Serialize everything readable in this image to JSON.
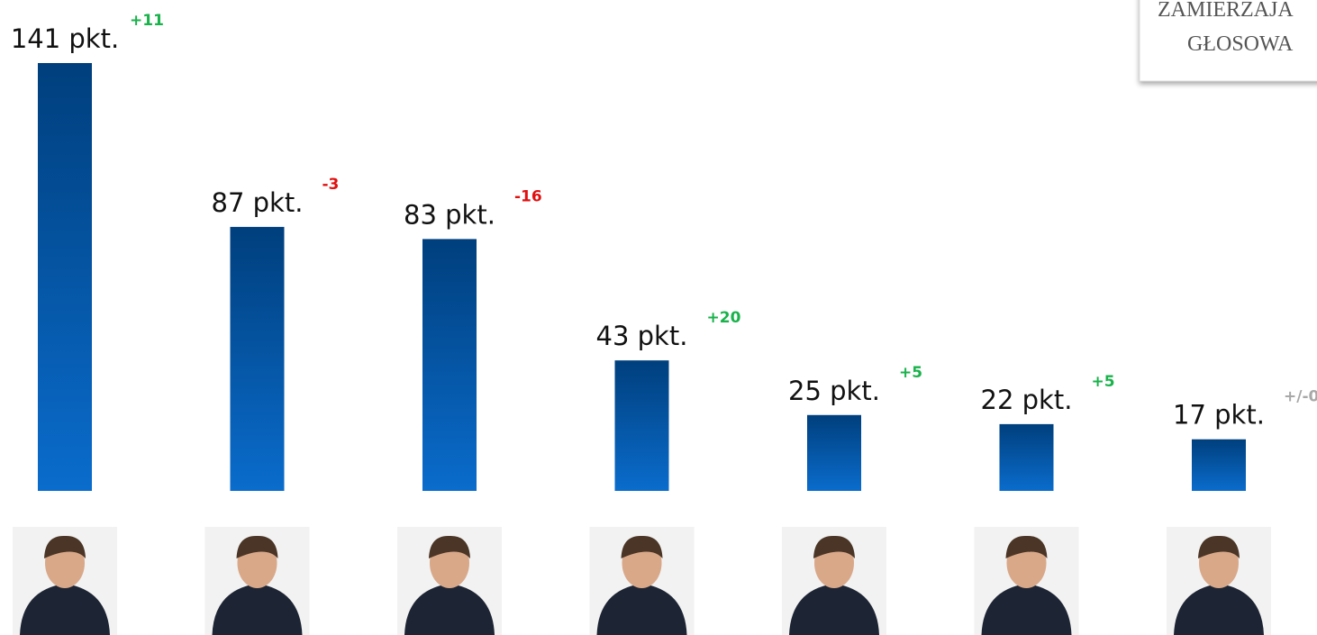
{
  "chart_data": {
    "type": "bar",
    "values": [
      141,
      87,
      83,
      43,
      25,
      22,
      17
    ],
    "value_labels": [
      "141 pkt.",
      "87 pkt.",
      "83 pkt.",
      "43 pkt.",
      "25 pkt.",
      "22 pkt.",
      "17 pkt."
    ],
    "changes": [
      {
        "value": 11,
        "label": "+11"
      },
      {
        "value": -3,
        "label": "-3"
      },
      {
        "value": -16,
        "label": "-16"
      },
      {
        "value": 20,
        "label": "+20"
      },
      {
        "value": 5,
        "label": "+5"
      },
      {
        "value": 5,
        "label": "+5"
      },
      {
        "value": 0,
        "label": "+/-0"
      }
    ],
    "color": "#0a63b8",
    "corner_note": [
      "ZAMIERZAJA",
      "GŁOSOWA"
    ]
  }
}
